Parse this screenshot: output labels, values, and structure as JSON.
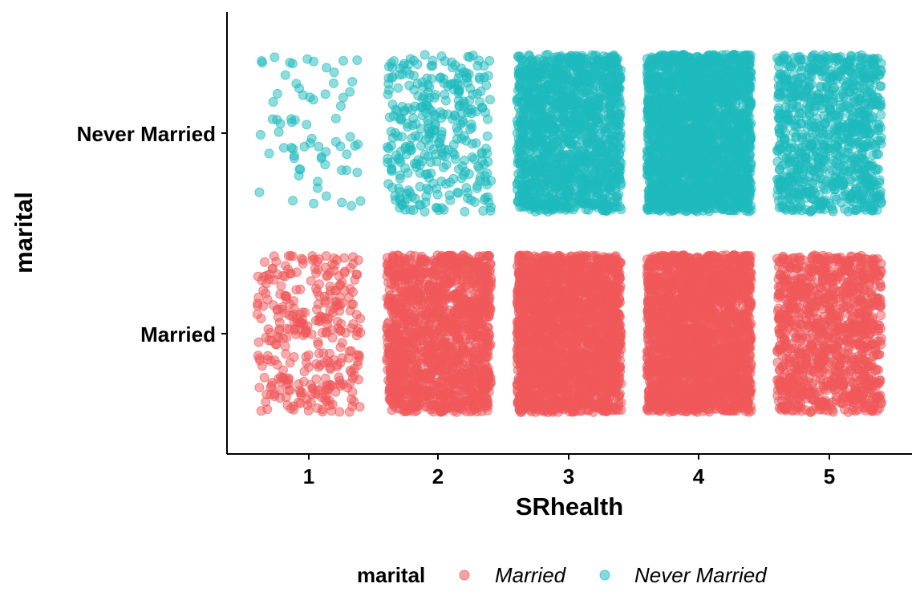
{
  "chart_data": {
    "type": "scatter",
    "jitter": true,
    "xlabel": "SRhealth",
    "ylabel": "marital",
    "x_categories": [
      "1",
      "2",
      "3",
      "4",
      "5"
    ],
    "y_categories": [
      "Married",
      "Never Married"
    ],
    "grid": false,
    "legend": {
      "title": "marital",
      "position": "bottom",
      "entries": [
        "Married",
        "Never Married"
      ]
    },
    "series": [
      {
        "name": "Married",
        "color": "#F0585A",
        "point_counts_by_srhealth": [
          330,
          1500,
          6000,
          6000,
          1100
        ]
      },
      {
        "name": "Never Married",
        "color": "#1EBABD",
        "point_counts_by_srhealth": [
          70,
          330,
          1500,
          2500,
          900
        ]
      }
    ]
  }
}
